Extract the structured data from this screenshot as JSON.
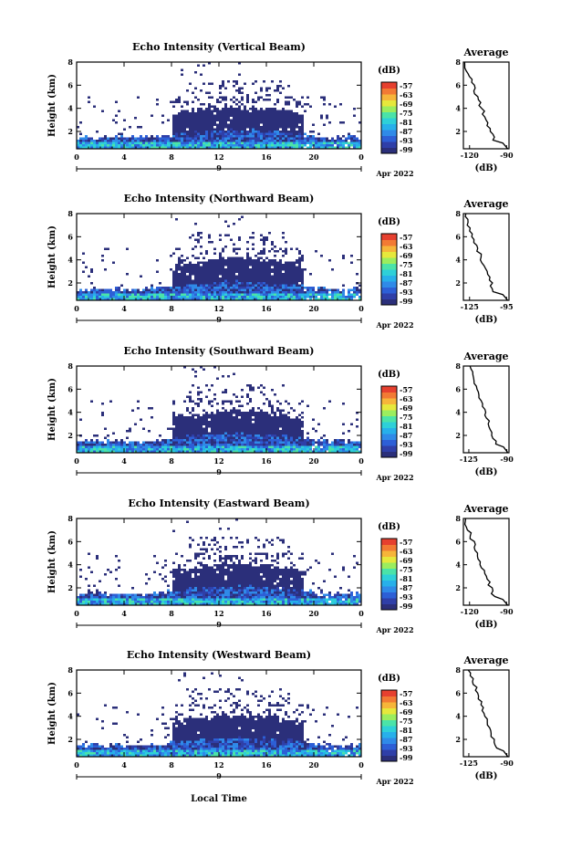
{
  "palette": [
    "#2b2f7a",
    "#2f3fa8",
    "#2d5fd6",
    "#2f8ae8",
    "#27b0ea",
    "#2ed0d8",
    "#4be3a8",
    "#9bed5e",
    "#e6e83c",
    "#f6b53a",
    "#f27a34",
    "#e6402f"
  ],
  "colorbar": {
    "unit": "(dB)",
    "ticks": [
      "-57",
      "-63",
      "-69",
      "-75",
      "-81",
      "-87",
      "-93",
      "-99"
    ]
  },
  "date_label": "Apr 2022",
  "x_axis_label": "Local Time",
  "day_label": "9",
  "chart_data": [
    {
      "type": "heatmap",
      "title": "Echo Intensity (Vertical Beam)",
      "ylabel": "Height (km)",
      "x_ticks": [
        "0",
        "4",
        "8",
        "12",
        "16",
        "20",
        "0"
      ],
      "y_ticks": [
        "2",
        "4",
        "6",
        "8"
      ],
      "xlim": [
        0,
        24
      ],
      "ylim": [
        0.5,
        8
      ],
      "color_range_db": [
        -99,
        -57
      ],
      "profile": {
        "title": "Average",
        "xlabel": "(dB)",
        "x_ticks": [
          "-120",
          "-90"
        ],
        "xlim": [
          -125,
          -88
        ],
        "ylim": [
          0.5,
          8
        ],
        "y_ticks": [
          "2",
          "4",
          "6",
          "8"
        ]
      }
    },
    {
      "type": "heatmap",
      "title": "Echo Intensity (Northward Beam)",
      "ylabel": "Height (km)",
      "x_ticks": [
        "0",
        "4",
        "8",
        "12",
        "16",
        "20",
        "0"
      ],
      "y_ticks": [
        "2",
        "4",
        "6",
        "8"
      ],
      "xlim": [
        0,
        24
      ],
      "ylim": [
        0.5,
        8
      ],
      "color_range_db": [
        -99,
        -57
      ],
      "profile": {
        "title": "Average",
        "xlabel": "(dB)",
        "x_ticks": [
          "-125",
          "-95"
        ],
        "xlim": [
          -130,
          -93
        ],
        "ylim": [
          0.5,
          8
        ],
        "y_ticks": [
          "2",
          "4",
          "6",
          "8"
        ]
      }
    },
    {
      "type": "heatmap",
      "title": "Echo Intensity (Southward Beam)",
      "ylabel": "Height (km)",
      "x_ticks": [
        "0",
        "4",
        "8",
        "12",
        "16",
        "20",
        "0"
      ],
      "y_ticks": [
        "2",
        "4",
        "6",
        "8"
      ],
      "xlim": [
        0,
        24
      ],
      "ylim": [
        0.5,
        8
      ],
      "color_range_db": [
        -99,
        -57
      ],
      "profile": {
        "title": "Average",
        "xlabel": "(dB)",
        "x_ticks": [
          "-125",
          "-90"
        ],
        "xlim": [
          -130,
          -88
        ],
        "ylim": [
          0.5,
          8
        ],
        "y_ticks": [
          "2",
          "4",
          "6",
          "8"
        ]
      }
    },
    {
      "type": "heatmap",
      "title": "Echo Intensity (Eastward Beam)",
      "ylabel": "Height (km)",
      "x_ticks": [
        "0",
        "4",
        "8",
        "12",
        "16",
        "20",
        "0"
      ],
      "y_ticks": [
        "2",
        "4",
        "6",
        "8"
      ],
      "xlim": [
        0,
        24
      ],
      "ylim": [
        0.5,
        8
      ],
      "color_range_db": [
        -99,
        -57
      ],
      "profile": {
        "title": "Average",
        "xlabel": "(dB)",
        "x_ticks": [
          "-120",
          "-90"
        ],
        "xlim": [
          -125,
          -88
        ],
        "ylim": [
          0.5,
          8
        ],
        "y_ticks": [
          "2",
          "4",
          "6",
          "8"
        ]
      }
    },
    {
      "type": "heatmap",
      "title": "Echo Intensity (Westward Beam)",
      "ylabel": "Height (km)",
      "x_ticks": [
        "0",
        "4",
        "8",
        "12",
        "16",
        "20",
        "0"
      ],
      "y_ticks": [
        "2",
        "4",
        "6",
        "8"
      ],
      "xlim": [
        0,
        24
      ],
      "ylim": [
        0.5,
        8
      ],
      "color_range_db": [
        -99,
        -57
      ],
      "profile": {
        "title": "Average",
        "xlabel": "(dB)",
        "x_ticks": [
          "-125",
          "-90"
        ],
        "xlim": [
          -130,
          -88
        ],
        "ylim": [
          0.5,
          8
        ],
        "y_ticks": [
          "2",
          "4",
          "6",
          "8"
        ]
      }
    }
  ]
}
